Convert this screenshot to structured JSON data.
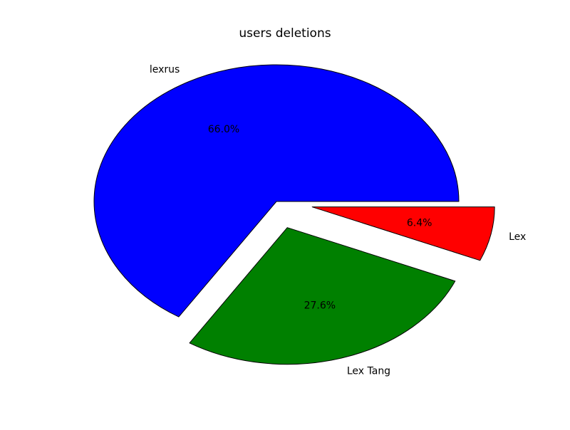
{
  "chart_data": {
    "type": "pie",
    "title": "users deletions",
    "slices": [
      {
        "label": "lexrus",
        "value": 66.0,
        "pct_label": "66.0%",
        "color": "#0000ff",
        "exploded": false
      },
      {
        "label": "Lex Tang",
        "value": 27.6,
        "pct_label": "27.6%",
        "color": "#008000",
        "exploded": true
      },
      {
        "label": "Lex",
        "value": 6.4,
        "pct_label": "6.4%",
        "color": "#ff0000",
        "exploded": true
      }
    ],
    "start_angle_deg": 0,
    "direction": "counterclockwise",
    "slice_edge_color": "#000000",
    "legend": false,
    "grid": false
  }
}
